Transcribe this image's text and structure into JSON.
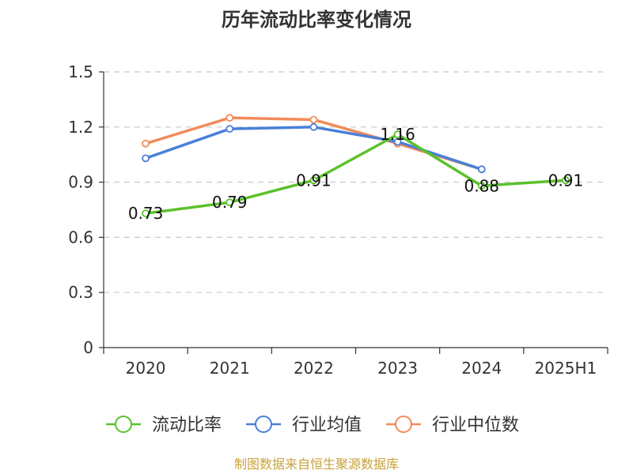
{
  "chart_data": {
    "type": "line",
    "title": "历年流动比率变化情况",
    "xlabel": "",
    "ylabel": "",
    "categories": [
      "2020",
      "2021",
      "2022",
      "2023",
      "2024",
      "2025H1"
    ],
    "y_ticks": [
      "0",
      "0.3",
      "0.6",
      "0.9",
      "1.2",
      "1.5"
    ],
    "ylim": [
      0,
      1.5
    ],
    "grid": true,
    "legend_position": "bottom",
    "series": [
      {
        "name": "流动比率",
        "color": "#5cc12b",
        "values": [
          0.73,
          0.79,
          0.91,
          1.16,
          0.88,
          0.91
        ],
        "labels": [
          "0.73",
          "0.79",
          "0.91",
          "1.16",
          "0.88",
          "0.91"
        ]
      },
      {
        "name": "行业均值",
        "color": "#4a7fd8",
        "values": [
          1.03,
          1.19,
          1.2,
          1.12,
          0.97,
          null
        ]
      },
      {
        "name": "行业中位数",
        "color": "#f28b5b",
        "values": [
          1.11,
          1.25,
          1.24,
          1.11,
          0.97,
          null
        ]
      }
    ]
  },
  "source": {
    "text": "制图数据来自恒生聚源数据库",
    "color": "#c8a23a"
  }
}
